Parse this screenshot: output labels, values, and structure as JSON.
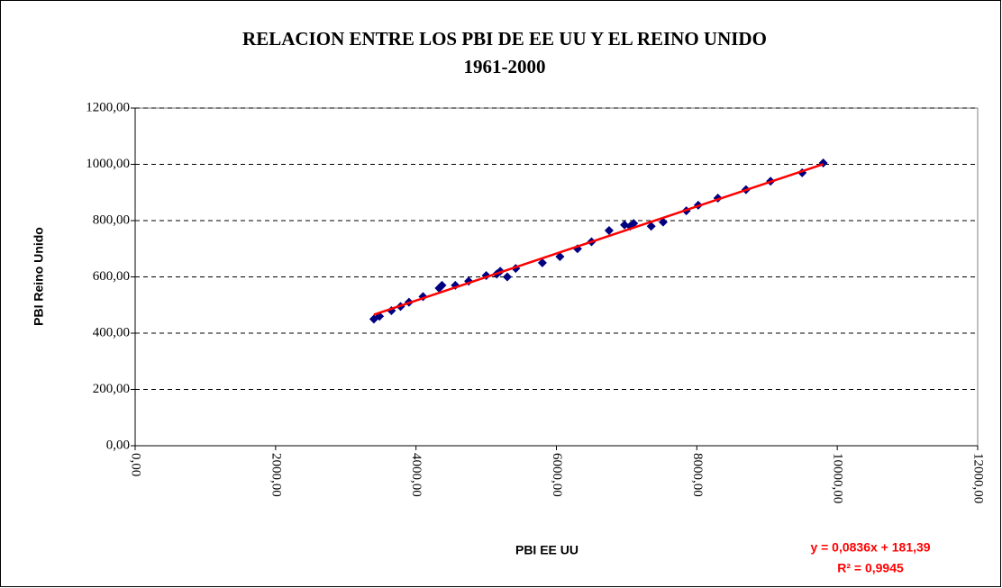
{
  "chart_data": {
    "type": "scatter",
    "title": "RELACION ENTRE LOS PBI DE EE UU Y EL REINO UNIDO",
    "subtitle": "1961-2000",
    "x_label": "PBI EE UU",
    "y_label": "PBI Reino Unido",
    "color": "#000080",
    "x": [
      3400,
      3480,
      3650,
      3780,
      3900,
      4100,
      4330,
      4370,
      4560,
      4750,
      5000,
      5150,
      5200,
      5300,
      5420,
      5800,
      6050,
      6300,
      6500,
      6750,
      6970,
      7050,
      7100,
      7350,
      7520,
      7850,
      8020,
      8300,
      8700,
      9050,
      9500,
      9800
    ],
    "values": [
      450,
      460,
      480,
      495,
      510,
      530,
      560,
      570,
      570,
      585,
      605,
      610,
      620,
      600,
      630,
      650,
      672,
      700,
      725,
      765,
      785,
      780,
      790,
      780,
      795,
      835,
      855,
      880,
      910,
      940,
      970,
      1005
    ],
    "xlim": [
      0,
      12000
    ],
    "ylim": [
      0,
      1200
    ],
    "xticks": [
      {
        "value": 0,
        "label": "0,00"
      },
      {
        "value": 2000,
        "label": "2000,00"
      },
      {
        "value": 4000,
        "label": "4000,00"
      },
      {
        "value": 6000,
        "label": "6000,00"
      },
      {
        "value": 8000,
        "label": "8000,00"
      },
      {
        "value": 10000,
        "label": "10000,00"
      },
      {
        "value": 12000,
        "label": "12000,00"
      }
    ],
    "yticks": [
      {
        "value": 0,
        "label": "0,00"
      },
      {
        "value": 200,
        "label": "200,00"
      },
      {
        "value": 400,
        "label": "400,00"
      },
      {
        "value": 600,
        "label": "600,00"
      },
      {
        "value": 800,
        "label": "800,00"
      },
      {
        "value": 1000,
        "label": "1000,00"
      },
      {
        "value": 1200,
        "label": "1200,00"
      }
    ],
    "grid": true,
    "trendline": {
      "slope": 0.0836,
      "intercept": 181.39,
      "color": "#ff0000",
      "equation": "y = 0,0836x + 181,39",
      "r_squared": "R² = 0,9945"
    }
  }
}
